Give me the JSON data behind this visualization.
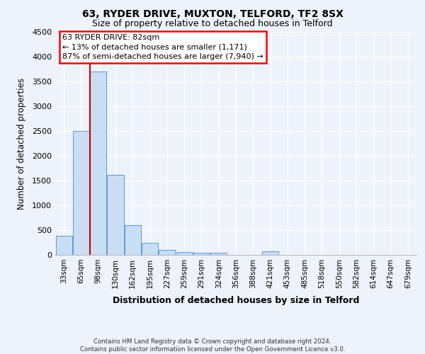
{
  "title1": "63, RYDER DRIVE, MUXTON, TELFORD, TF2 8SX",
  "title2": "Size of property relative to detached houses in Telford",
  "xlabel": "Distribution of detached houses by size in Telford",
  "ylabel": "Number of detached properties",
  "categories": [
    "33sqm",
    "65sqm",
    "98sqm",
    "130sqm",
    "162sqm",
    "195sqm",
    "227sqm",
    "259sqm",
    "291sqm",
    "324sqm",
    "356sqm",
    "388sqm",
    "421sqm",
    "453sqm",
    "485sqm",
    "518sqm",
    "550sqm",
    "582sqm",
    "614sqm",
    "647sqm",
    "679sqm"
  ],
  "values": [
    380,
    2500,
    3700,
    1620,
    600,
    240,
    100,
    60,
    50,
    40,
    5,
    0,
    70,
    0,
    0,
    0,
    0,
    0,
    0,
    0,
    0
  ],
  "bar_color": "#c9ddf5",
  "bar_edge_color": "#5b9bd5",
  "annotation_title": "63 RYDER DRIVE: 82sqm",
  "annotation_line1": "← 13% of detached houses are smaller (1,171)",
  "annotation_line2": "87% of semi-detached houses are larger (7,940) →",
  "vline_color": "#cc0000",
  "footer1": "Contains HM Land Registry data © Crown copyright and database right 2024.",
  "footer2": "Contains public sector information licensed under the Open Government Licence v3.0.",
  "ylim": [
    0,
    4500
  ],
  "yticks": [
    0,
    500,
    1000,
    1500,
    2000,
    2500,
    3000,
    3500,
    4000,
    4500
  ],
  "bg_color": "#edf2fb",
  "grid_color": "white"
}
